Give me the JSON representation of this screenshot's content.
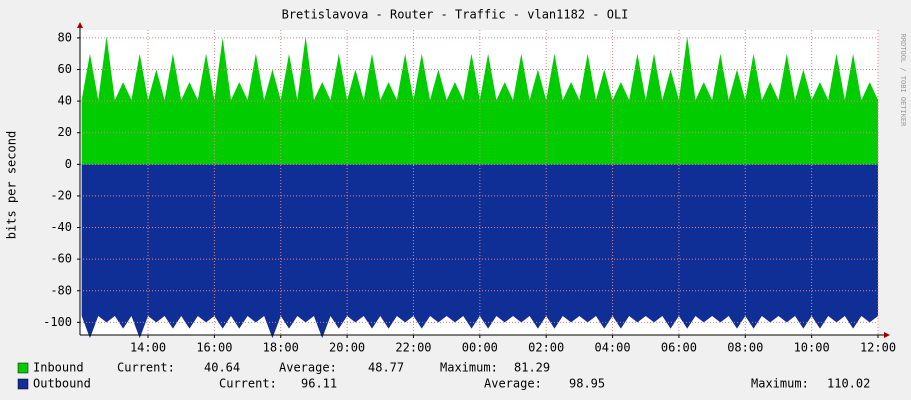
{
  "chart_data": {
    "type": "area",
    "title": "Bretislavova - Router - Traffic - vlan1182 - OLI",
    "y_label": "bits per second",
    "side_text": "RRDTOOL / TOBI OETIKER",
    "xlim": [
      11.95,
      36
    ],
    "xticks": [
      {
        "value": 14,
        "label": "14:00"
      },
      {
        "value": 16,
        "label": "16:00"
      },
      {
        "value": 18,
        "label": "18:00"
      },
      {
        "value": 20,
        "label": "20:00"
      },
      {
        "value": 22,
        "label": "22:00"
      },
      {
        "value": 24,
        "label": "00:00"
      },
      {
        "value": 26,
        "label": "02:00"
      },
      {
        "value": 28,
        "label": "04:00"
      },
      {
        "value": 30,
        "label": "06:00"
      },
      {
        "value": 32,
        "label": "08:00"
      },
      {
        "value": 34,
        "label": "10:00"
      },
      {
        "value": 36,
        "label": "12:00"
      }
    ],
    "ylim": [
      -108,
      85
    ],
    "yticks": [
      80,
      60,
      40,
      20,
      0,
      -20,
      -40,
      -60,
      -80,
      -100
    ],
    "grid": true,
    "x": [
      12,
      12.25,
      12.5,
      12.75,
      13,
      13.25,
      13.5,
      13.75,
      14,
      14.25,
      14.5,
      14.75,
      15,
      15.25,
      15.5,
      15.75,
      16,
      16.25,
      16.5,
      16.75,
      17,
      17.25,
      17.5,
      17.75,
      18,
      18.25,
      18.5,
      18.75,
      19,
      19.25,
      19.5,
      19.75,
      20,
      20.25,
      20.5,
      20.75,
      21,
      21.25,
      21.5,
      21.75,
      22,
      22.25,
      22.5,
      22.75,
      23,
      23.25,
      23.5,
      23.75,
      24,
      24.25,
      24.5,
      24.75,
      25,
      25.25,
      25.5,
      25.75,
      26,
      26.25,
      26.5,
      26.75,
      27,
      27.25,
      27.5,
      27.75,
      28,
      28.25,
      28.5,
      28.75,
      29,
      29.25,
      29.5,
      29.75,
      30,
      30.25,
      30.5,
      30.75,
      31,
      31.25,
      31.5,
      31.75,
      32,
      32.25,
      32.5,
      32.75,
      33,
      33.25,
      33.5,
      33.75,
      34,
      34.25,
      34.5,
      34.75,
      35,
      35.25,
      35.5,
      35.75,
      36
    ],
    "series": [
      {
        "name": "Inbound",
        "color": "#00cc00",
        "values": [
          40.6,
          70,
          40.6,
          81,
          40.6,
          52,
          40.6,
          70,
          40.6,
          60,
          40.6,
          70,
          40.6,
          52,
          40.6,
          70,
          40.6,
          80,
          40.6,
          52,
          40.6,
          70,
          40.6,
          60,
          40.6,
          70,
          40.6,
          81,
          40.6,
          52,
          40.6,
          70,
          40.6,
          60,
          40.6,
          70,
          40.6,
          52,
          40.6,
          70,
          40.6,
          70,
          40.6,
          60,
          40.6,
          52,
          40.6,
          70,
          40.6,
          70,
          40.6,
          52,
          40.6,
          70,
          40.6,
          60,
          40.6,
          70,
          40.6,
          52,
          40.6,
          70,
          40.6,
          60,
          40.6,
          52,
          40.6,
          70,
          40.6,
          70,
          40.6,
          60,
          40.6,
          81,
          40.6,
          52,
          40.6,
          70,
          40.6,
          60,
          40.6,
          70,
          40.6,
          52,
          40.6,
          70,
          40.6,
          60,
          40.6,
          52,
          40.6,
          70,
          40.6,
          70,
          40.6,
          52,
          40.6
        ],
        "stats": [
          {
            "label": "Current:",
            "value": 40.64
          },
          {
            "label": "Average:",
            "value": 48.77
          },
          {
            "label": "Maximum:",
            "value": 81.29
          }
        ]
      },
      {
        "name": "Outbound",
        "color": "#0f2f96",
        "values": [
          -96,
          -110,
          -96,
          -100,
          -96,
          -104,
          -96,
          -110,
          -96,
          -100,
          -96,
          -104,
          -96,
          -104,
          -96,
          -100,
          -96,
          -104,
          -96,
          -104,
          -96,
          -100,
          -96,
          -110,
          -96,
          -104,
          -96,
          -100,
          -96,
          -110,
          -96,
          -104,
          -96,
          -100,
          -96,
          -104,
          -96,
          -104,
          -96,
          -100,
          -96,
          -104,
          -96,
          -100,
          -96,
          -100,
          -96,
          -104,
          -96,
          -104,
          -96,
          -100,
          -96,
          -100,
          -96,
          -104,
          -96,
          -104,
          -96,
          -100,
          -96,
          -100,
          -96,
          -104,
          -96,
          -104,
          -96,
          -100,
          -96,
          -100,
          -96,
          -104,
          -96,
          -104,
          -96,
          -100,
          -96,
          -100,
          -96,
          -104,
          -96,
          -104,
          -96,
          -100,
          -96,
          -100,
          -96,
          -104,
          -96,
          -104,
          -96,
          -100,
          -96,
          -104,
          -96,
          -100,
          -96
        ],
        "stats": [
          {
            "label": "Current:",
            "value": 96.11
          },
          {
            "label": "Average:",
            "value": 98.95
          },
          {
            "label": "Maximum:",
            "value": 110.02
          }
        ]
      }
    ]
  }
}
